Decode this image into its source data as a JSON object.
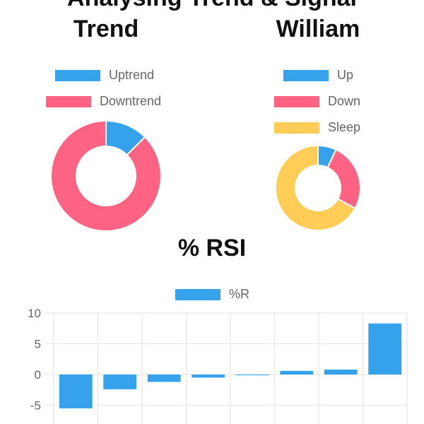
{
  "page": {
    "top_title": "Analysing Trend & Signal"
  },
  "colors": {
    "blue": "#36a2eb",
    "pink": "#ff6384",
    "yellow": "#ffcd56",
    "grid": "#e3e3e3",
    "axis_text": "#666666"
  },
  "trend": {
    "title": "Trend",
    "legend": [
      {
        "label": "Uptrend",
        "color": "#36a2eb"
      },
      {
        "label": "Downtrend",
        "color": "#ff6384"
      }
    ]
  },
  "william": {
    "title": "William",
    "legend": [
      {
        "label": "Up",
        "color": "#36a2eb"
      },
      {
        "label": "Down",
        "color": "#ff6384"
      },
      {
        "label": "Sleep",
        "color": "#ffcd56"
      }
    ]
  },
  "rsi": {
    "title": "% RSI",
    "legend_label": "%R"
  },
  "chart_data": [
    {
      "type": "pie",
      "variant": "doughnut",
      "title": "Trend",
      "labels": [
        "Uptrend",
        "Downtrend"
      ],
      "values": [
        12.5,
        87.5
      ],
      "colors": [
        "#36a2eb",
        "#ff6384"
      ],
      "legend": "top"
    },
    {
      "type": "pie",
      "variant": "doughnut",
      "title": "William",
      "labels": [
        "Up",
        "Down",
        "Sleep"
      ],
      "values": [
        7,
        26,
        67
      ],
      "colors": [
        "#36a2eb",
        "#ff6384",
        "#ffcd56"
      ],
      "legend": "top"
    },
    {
      "type": "bar",
      "title": "% RSI",
      "series": [
        {
          "name": "%R",
          "values": [
            -5.5,
            -2.4,
            -1.2,
            -0.5,
            0,
            0.6,
            0.8,
            8.3
          ]
        }
      ],
      "categories": [
        "",
        "",
        "",
        "",
        "",
        "",
        "",
        ""
      ],
      "yticks": [
        10,
        5,
        0,
        -5
      ],
      "ylim": [
        -7.5,
        10
      ],
      "grid": true,
      "legend": "top"
    }
  ]
}
